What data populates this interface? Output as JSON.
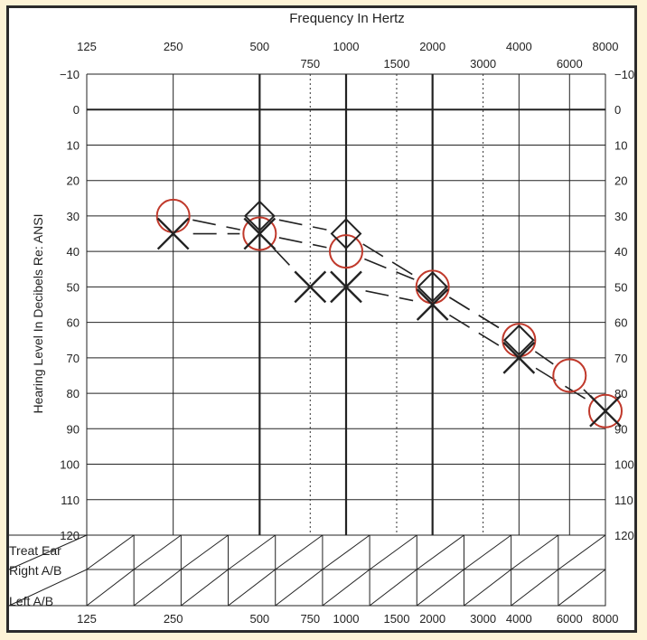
{
  "chart_data": {
    "type": "scatter",
    "title": "Frequency In Hertz",
    "xlabel": "Frequency In Hertz",
    "ylabel": "Hearing Level In Decibels Re: ANSI",
    "x_scale": "log",
    "y_inverted": true,
    "ylim": [
      -10,
      120
    ],
    "main_freqs": [
      "125",
      "250",
      "500",
      "1000",
      "2000",
      "4000",
      "8000"
    ],
    "inter_freqs": [
      "750",
      "1500",
      "3000",
      "6000"
    ],
    "bottom_freqs": [
      "125",
      "250",
      "500",
      "750",
      "1000",
      "1500",
      "2000",
      "3000",
      "4000",
      "6000",
      "8000"
    ],
    "y_ticks": [
      "−10",
      "0",
      "10",
      "20",
      "30",
      "40",
      "50",
      "60",
      "70",
      "80",
      "90",
      "100",
      "110",
      "120"
    ],
    "series": [
      {
        "symbol": "circle",
        "color": "#c0392b",
        "points": [
          [
            250,
            30
          ],
          [
            500,
            35
          ],
          [
            1000,
            40
          ],
          [
            2000,
            50
          ],
          [
            4000,
            65
          ],
          [
            6000,
            75
          ],
          [
            8000,
            85
          ]
        ]
      },
      {
        "symbol": "X",
        "color": "#222222",
        "points": [
          [
            250,
            35
          ],
          [
            500,
            35
          ],
          [
            750,
            50
          ],
          [
            1000,
            50
          ],
          [
            2000,
            55
          ],
          [
            4000,
            70
          ],
          [
            8000,
            85
          ]
        ]
      },
      {
        "symbol": "diamond",
        "color": "#222222",
        "points": [
          [
            500,
            30
          ],
          [
            1000,
            35
          ],
          [
            2000,
            50
          ],
          [
            4000,
            65
          ]
        ]
      }
    ]
  },
  "masking_table": {
    "row_labels": [
      "Treat Ear",
      "Right A/B",
      "Left A/B"
    ]
  }
}
